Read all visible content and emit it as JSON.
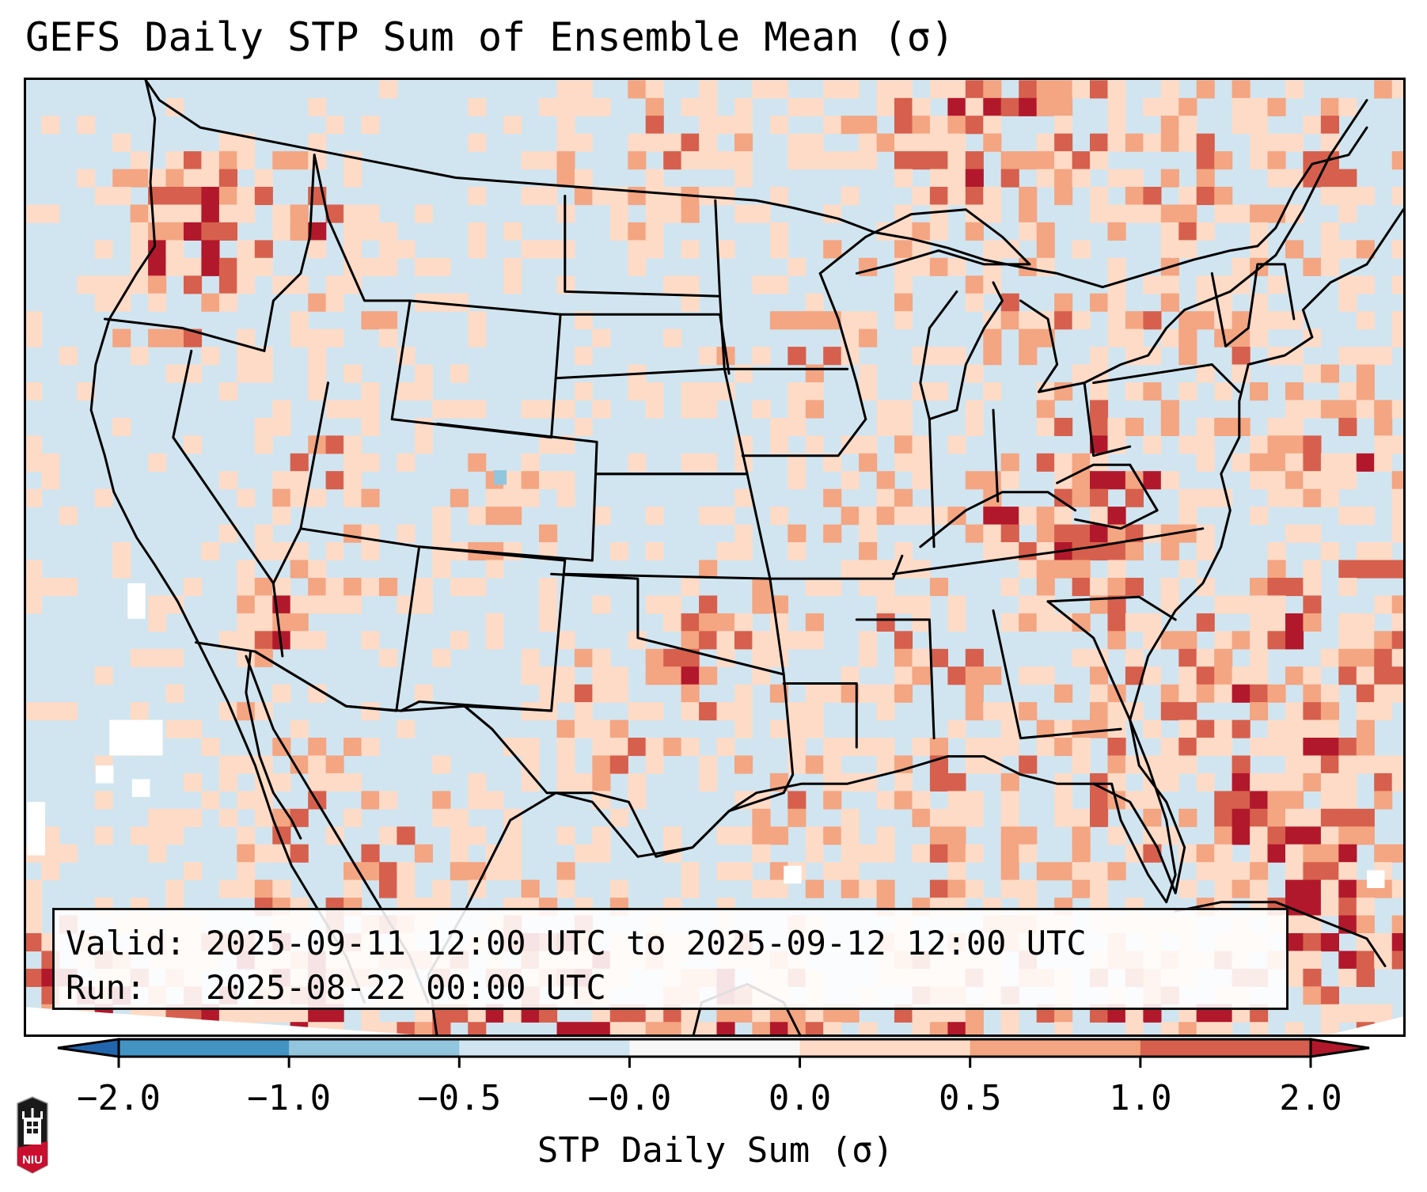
{
  "title": "GEFS Daily STP Sum of Ensemble Mean (σ)",
  "info_box": {
    "valid_label": "Valid:",
    "valid_value": "2025-09-11 12:00 UTC to 2025-09-12 12:00 UTC",
    "run_label": "Run:",
    "run_value": "2025-08-22 00:00 UTC"
  },
  "colorbar": {
    "label": "STP Daily Sum (σ)",
    "ticks": [
      "−2.0",
      "−1.0",
      "−0.5",
      "−0.0",
      "0.0",
      "0.5",
      "1.0",
      "2.0"
    ],
    "bin_colors": [
      "#4393c3",
      "#92c5de",
      "#d1e5f0",
      "#f7f7f7",
      "#fddbc7",
      "#f4a582",
      "#d6604d"
    ],
    "under_color": "#2166ac",
    "over_color": "#b2182b",
    "extend": "both"
  },
  "map": {
    "background_color": "#d1e5f0",
    "no_data_color": "#ffffff",
    "border_color": "#000000",
    "region": "Contiguous United States"
  },
  "logo": {
    "text": "NIU",
    "primary_color": "#c8102e",
    "secondary_color": "#1a1a1a"
  }
}
